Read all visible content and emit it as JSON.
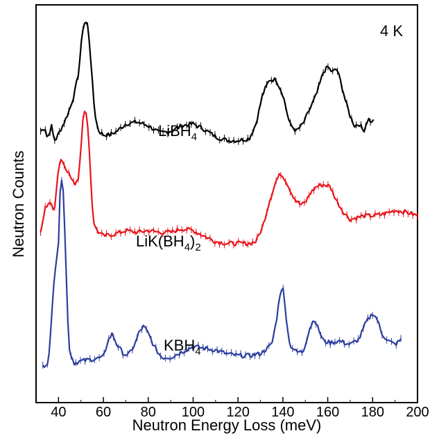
{
  "chart_data": {
    "type": "line",
    "annotation": "4 K",
    "xlabel": "Neutron Energy Loss (meV)",
    "ylabel": "Neutron Counts",
    "xlim": [
      30,
      200
    ],
    "ylim": [
      0,
      1
    ],
    "x_ticks": [
      40,
      60,
      80,
      100,
      120,
      140,
      160,
      180,
      200
    ],
    "grid": false,
    "legend": "none",
    "series": [
      {
        "name": "LiBH4",
        "color": "#000000",
        "x_range": [
          32,
          181
        ],
        "points": [
          [
            32,
            0.7
          ],
          [
            34,
            0.71
          ],
          [
            35,
            0.68
          ],
          [
            37,
            0.715
          ],
          [
            38,
            0.675
          ],
          [
            39,
            0.68
          ],
          [
            41,
            0.705
          ],
          [
            43,
            0.73
          ],
          [
            45,
            0.76
          ],
          [
            47,
            0.8
          ],
          [
            49,
            0.86
          ],
          [
            50,
            0.93
          ],
          [
            51,
            0.985
          ],
          [
            52,
            1.0
          ],
          [
            53,
            0.985
          ],
          [
            54,
            0.93
          ],
          [
            55,
            0.84
          ],
          [
            56,
            0.76
          ],
          [
            57,
            0.72
          ],
          [
            58,
            0.7
          ],
          [
            60,
            0.69
          ],
          [
            63,
            0.69
          ],
          [
            66,
            0.7
          ],
          [
            70,
            0.72
          ],
          [
            75,
            0.725
          ],
          [
            80,
            0.715
          ],
          [
            85,
            0.695
          ],
          [
            90,
            0.7
          ],
          [
            95,
            0.715
          ],
          [
            100,
            0.72
          ],
          [
            105,
            0.705
          ],
          [
            110,
            0.685
          ],
          [
            115,
            0.675
          ],
          [
            120,
            0.675
          ],
          [
            125,
            0.68
          ],
          [
            128,
            0.72
          ],
          [
            131,
            0.8
          ],
          [
            134,
            0.84
          ],
          [
            137,
            0.84
          ],
          [
            140,
            0.8
          ],
          [
            143,
            0.72
          ],
          [
            146,
            0.7
          ],
          [
            149,
            0.72
          ],
          [
            152,
            0.76
          ],
          [
            155,
            0.8
          ],
          [
            158,
            0.86
          ],
          [
            160,
            0.875
          ],
          [
            162,
            0.86
          ],
          [
            164,
            0.87
          ],
          [
            166,
            0.83
          ],
          [
            168,
            0.78
          ],
          [
            170,
            0.74
          ],
          [
            172,
            0.715
          ],
          [
            174,
            0.72
          ],
          [
            176,
            0.7
          ],
          [
            178,
            0.735
          ],
          [
            180,
            0.72
          ],
          [
            181,
            0.755
          ]
        ]
      },
      {
        "name": "LiK(BH4)2",
        "color": "#e8141b",
        "x_range": [
          32,
          200
        ],
        "points": [
          [
            32,
            0.42
          ],
          [
            34,
            0.49
          ],
          [
            36,
            0.51
          ],
          [
            38,
            0.48
          ],
          [
            40,
            0.6
          ],
          [
            41,
            0.625
          ],
          [
            43,
            0.605
          ],
          [
            45,
            0.58
          ],
          [
            47,
            0.555
          ],
          [
            49,
            0.575
          ],
          [
            50,
            0.66
          ],
          [
            51,
            0.745
          ],
          [
            52,
            0.755
          ],
          [
            53,
            0.72
          ],
          [
            54,
            0.62
          ],
          [
            55,
            0.5
          ],
          [
            56,
            0.44
          ],
          [
            58,
            0.425
          ],
          [
            60,
            0.415
          ],
          [
            65,
            0.42
          ],
          [
            70,
            0.43
          ],
          [
            75,
            0.425
          ],
          [
            80,
            0.43
          ],
          [
            85,
            0.425
          ],
          [
            90,
            0.425
          ],
          [
            95,
            0.435
          ],
          [
            100,
            0.43
          ],
          [
            105,
            0.415
          ],
          [
            110,
            0.4
          ],
          [
            115,
            0.395
          ],
          [
            120,
            0.395
          ],
          [
            125,
            0.395
          ],
          [
            128,
            0.4
          ],
          [
            131,
            0.44
          ],
          [
            134,
            0.51
          ],
          [
            137,
            0.565
          ],
          [
            139,
            0.585
          ],
          [
            141,
            0.57
          ],
          [
            144,
            0.53
          ],
          [
            146,
            0.51
          ],
          [
            148,
            0.5
          ],
          [
            150,
            0.505
          ],
          [
            152,
            0.53
          ],
          [
            155,
            0.55
          ],
          [
            158,
            0.555
          ],
          [
            161,
            0.55
          ],
          [
            164,
            0.51
          ],
          [
            167,
            0.48
          ],
          [
            170,
            0.46
          ],
          [
            173,
            0.465
          ],
          [
            176,
            0.47
          ],
          [
            180,
            0.47
          ],
          [
            185,
            0.475
          ],
          [
            190,
            0.485
          ],
          [
            195,
            0.48
          ],
          [
            200,
            0.47
          ]
        ]
      },
      {
        "name": "KBH4",
        "color": "#2b3d9e",
        "x_range": [
          33,
          193
        ],
        "points": [
          [
            33,
            0.06
          ],
          [
            35,
            0.07
          ],
          [
            36,
            0.1
          ],
          [
            37,
            0.2
          ],
          [
            38,
            0.3
          ],
          [
            39,
            0.35
          ],
          [
            40,
            0.4
          ],
          [
            41,
            0.58
          ],
          [
            42,
            0.56
          ],
          [
            43,
            0.4
          ],
          [
            44,
            0.2
          ],
          [
            45,
            0.1
          ],
          [
            47,
            0.07
          ],
          [
            50,
            0.075
          ],
          [
            55,
            0.08
          ],
          [
            60,
            0.085
          ],
          [
            62,
            0.13
          ],
          [
            64,
            0.15
          ],
          [
            66,
            0.12
          ],
          [
            69,
            0.095
          ],
          [
            71,
            0.09
          ],
          [
            74,
            0.12
          ],
          [
            76,
            0.155
          ],
          [
            78,
            0.17
          ],
          [
            80,
            0.15
          ],
          [
            83,
            0.11
          ],
          [
            86,
            0.085
          ],
          [
            90,
            0.085
          ],
          [
            95,
            0.1
          ],
          [
            100,
            0.115
          ],
          [
            105,
            0.11
          ],
          [
            110,
            0.105
          ],
          [
            115,
            0.095
          ],
          [
            120,
            0.09
          ],
          [
            125,
            0.09
          ],
          [
            130,
            0.095
          ],
          [
            135,
            0.12
          ],
          [
            137,
            0.18
          ],
          [
            139,
            0.27
          ],
          [
            140,
            0.275
          ],
          [
            141,
            0.22
          ],
          [
            143,
            0.12
          ],
          [
            146,
            0.1
          ],
          [
            149,
            0.1
          ],
          [
            152,
            0.165
          ],
          [
            154,
            0.19
          ],
          [
            156,
            0.16
          ],
          [
            158,
            0.13
          ],
          [
            161,
            0.125
          ],
          [
            165,
            0.13
          ],
          [
            170,
            0.12
          ],
          [
            174,
            0.135
          ],
          [
            177,
            0.18
          ],
          [
            180,
            0.205
          ],
          [
            182,
            0.19
          ],
          [
            184,
            0.15
          ],
          [
            187,
            0.13
          ],
          [
            190,
            0.12
          ],
          [
            193,
            0.135
          ]
        ]
      }
    ]
  },
  "labels": {
    "temperature": "4 K",
    "LiBH4": {
      "base": "LiBH",
      "sub": "4"
    },
    "LiK(BH4)2": {
      "base": "LiK(BH",
      "sub": "4",
      "close": ")",
      "sub2": "2"
    },
    "KBH4": {
      "base": "KBH",
      "sub": "4"
    }
  }
}
